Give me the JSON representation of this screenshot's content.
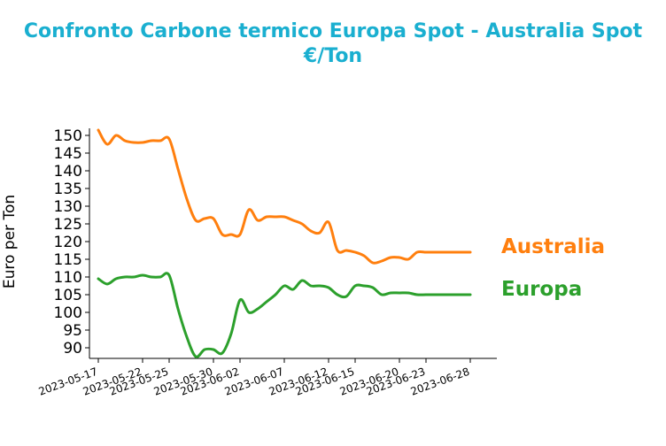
{
  "title_line1": "Confronto Carbone termico Europa Spot - Australia Spot",
  "title_line2": "€/Ton",
  "colors": {
    "title": "#1aafd0",
    "Australia": "#ff7f0e",
    "Europa": "#2ca02c"
  },
  "chart_data": {
    "type": "line",
    "title": "Confronto Carbone termico Europa Spot - Australia Spot €/Ton",
    "xlabel": "",
    "ylabel": "Euro per Ton",
    "ylim": [
      87,
      152
    ],
    "yticks": [
      90,
      95,
      100,
      105,
      110,
      115,
      120,
      125,
      130,
      135,
      140,
      145,
      150
    ],
    "xticks": [
      "2023-05-17",
      "2023-05-22",
      "2023-05-25",
      "2023-05-30",
      "2023-06-02",
      "2023-06-07",
      "2023-06-12",
      "2023-06-15",
      "2023-06-20",
      "2023-06-23",
      "2023-06-28"
    ],
    "grid": false,
    "legend": "labels at right end of lines",
    "series": [
      {
        "name": "Australia",
        "points": [
          [
            "2023-05-17",
            151.5
          ],
          [
            "2023-05-18",
            147.5
          ],
          [
            "2023-05-19",
            150
          ],
          [
            "2023-05-20",
            148.5
          ],
          [
            "2023-05-21",
            148
          ],
          [
            "2023-05-22",
            148
          ],
          [
            "2023-05-23",
            148.5
          ],
          [
            "2023-05-24",
            148.5
          ],
          [
            "2023-05-25",
            149
          ],
          [
            "2023-05-26",
            140.5
          ],
          [
            "2023-05-27",
            132
          ],
          [
            "2023-05-28",
            126
          ],
          [
            "2023-05-29",
            126.5
          ],
          [
            "2023-05-30",
            126.5
          ],
          [
            "2023-05-31",
            122
          ],
          [
            "2023-06-01",
            122
          ],
          [
            "2023-06-02",
            122
          ],
          [
            "2023-06-03",
            129
          ],
          [
            "2023-06-04",
            126
          ],
          [
            "2023-06-05",
            127
          ],
          [
            "2023-06-06",
            127
          ],
          [
            "2023-06-07",
            127
          ],
          [
            "2023-06-08",
            126
          ],
          [
            "2023-06-09",
            125
          ],
          [
            "2023-06-10",
            123
          ],
          [
            "2023-06-11",
            122.5
          ],
          [
            "2023-06-12",
            125.5
          ],
          [
            "2023-06-13",
            117.5
          ],
          [
            "2023-06-14",
            117.5
          ],
          [
            "2023-06-15",
            117
          ],
          [
            "2023-06-16",
            116
          ],
          [
            "2023-06-17",
            114
          ],
          [
            "2023-06-18",
            114.5
          ],
          [
            "2023-06-19",
            115.5
          ],
          [
            "2023-06-20",
            115.5
          ],
          [
            "2023-06-21",
            115
          ],
          [
            "2023-06-22",
            117
          ],
          [
            "2023-06-23",
            117
          ],
          [
            "2023-06-24",
            117
          ],
          [
            "2023-06-25",
            117
          ],
          [
            "2023-06-26",
            117
          ],
          [
            "2023-06-27",
            117
          ],
          [
            "2023-06-28",
            117
          ]
        ]
      },
      {
        "name": "Europa",
        "points": [
          [
            "2023-05-17",
            109.5
          ],
          [
            "2023-05-18",
            108
          ],
          [
            "2023-05-19",
            109.5
          ],
          [
            "2023-05-20",
            110
          ],
          [
            "2023-05-21",
            110
          ],
          [
            "2023-05-22",
            110.5
          ],
          [
            "2023-05-23",
            110
          ],
          [
            "2023-05-24",
            110
          ],
          [
            "2023-05-25",
            110.5
          ],
          [
            "2023-05-26",
            101
          ],
          [
            "2023-05-27",
            93
          ],
          [
            "2023-05-28",
            87.5
          ],
          [
            "2023-05-29",
            89.5
          ],
          [
            "2023-05-30",
            89.5
          ],
          [
            "2023-05-31",
            88.5
          ],
          [
            "2023-06-01",
            94
          ],
          [
            "2023-06-02",
            103.5
          ],
          [
            "2023-06-03",
            100
          ],
          [
            "2023-06-04",
            101
          ],
          [
            "2023-06-05",
            103
          ],
          [
            "2023-06-06",
            105
          ],
          [
            "2023-06-07",
            107.5
          ],
          [
            "2023-06-08",
            106.5
          ],
          [
            "2023-06-09",
            109
          ],
          [
            "2023-06-10",
            107.5
          ],
          [
            "2023-06-11",
            107.5
          ],
          [
            "2023-06-12",
            107
          ],
          [
            "2023-06-13",
            105
          ],
          [
            "2023-06-14",
            104.5
          ],
          [
            "2023-06-15",
            107.5
          ],
          [
            "2023-06-16",
            107.5
          ],
          [
            "2023-06-17",
            107
          ],
          [
            "2023-06-18",
            105
          ],
          [
            "2023-06-19",
            105.5
          ],
          [
            "2023-06-20",
            105.5
          ],
          [
            "2023-06-21",
            105.5
          ],
          [
            "2023-06-22",
            105
          ],
          [
            "2023-06-23",
            105
          ],
          [
            "2023-06-24",
            105
          ],
          [
            "2023-06-25",
            105
          ],
          [
            "2023-06-26",
            105
          ],
          [
            "2023-06-27",
            105
          ],
          [
            "2023-06-28",
            105
          ]
        ]
      }
    ]
  }
}
